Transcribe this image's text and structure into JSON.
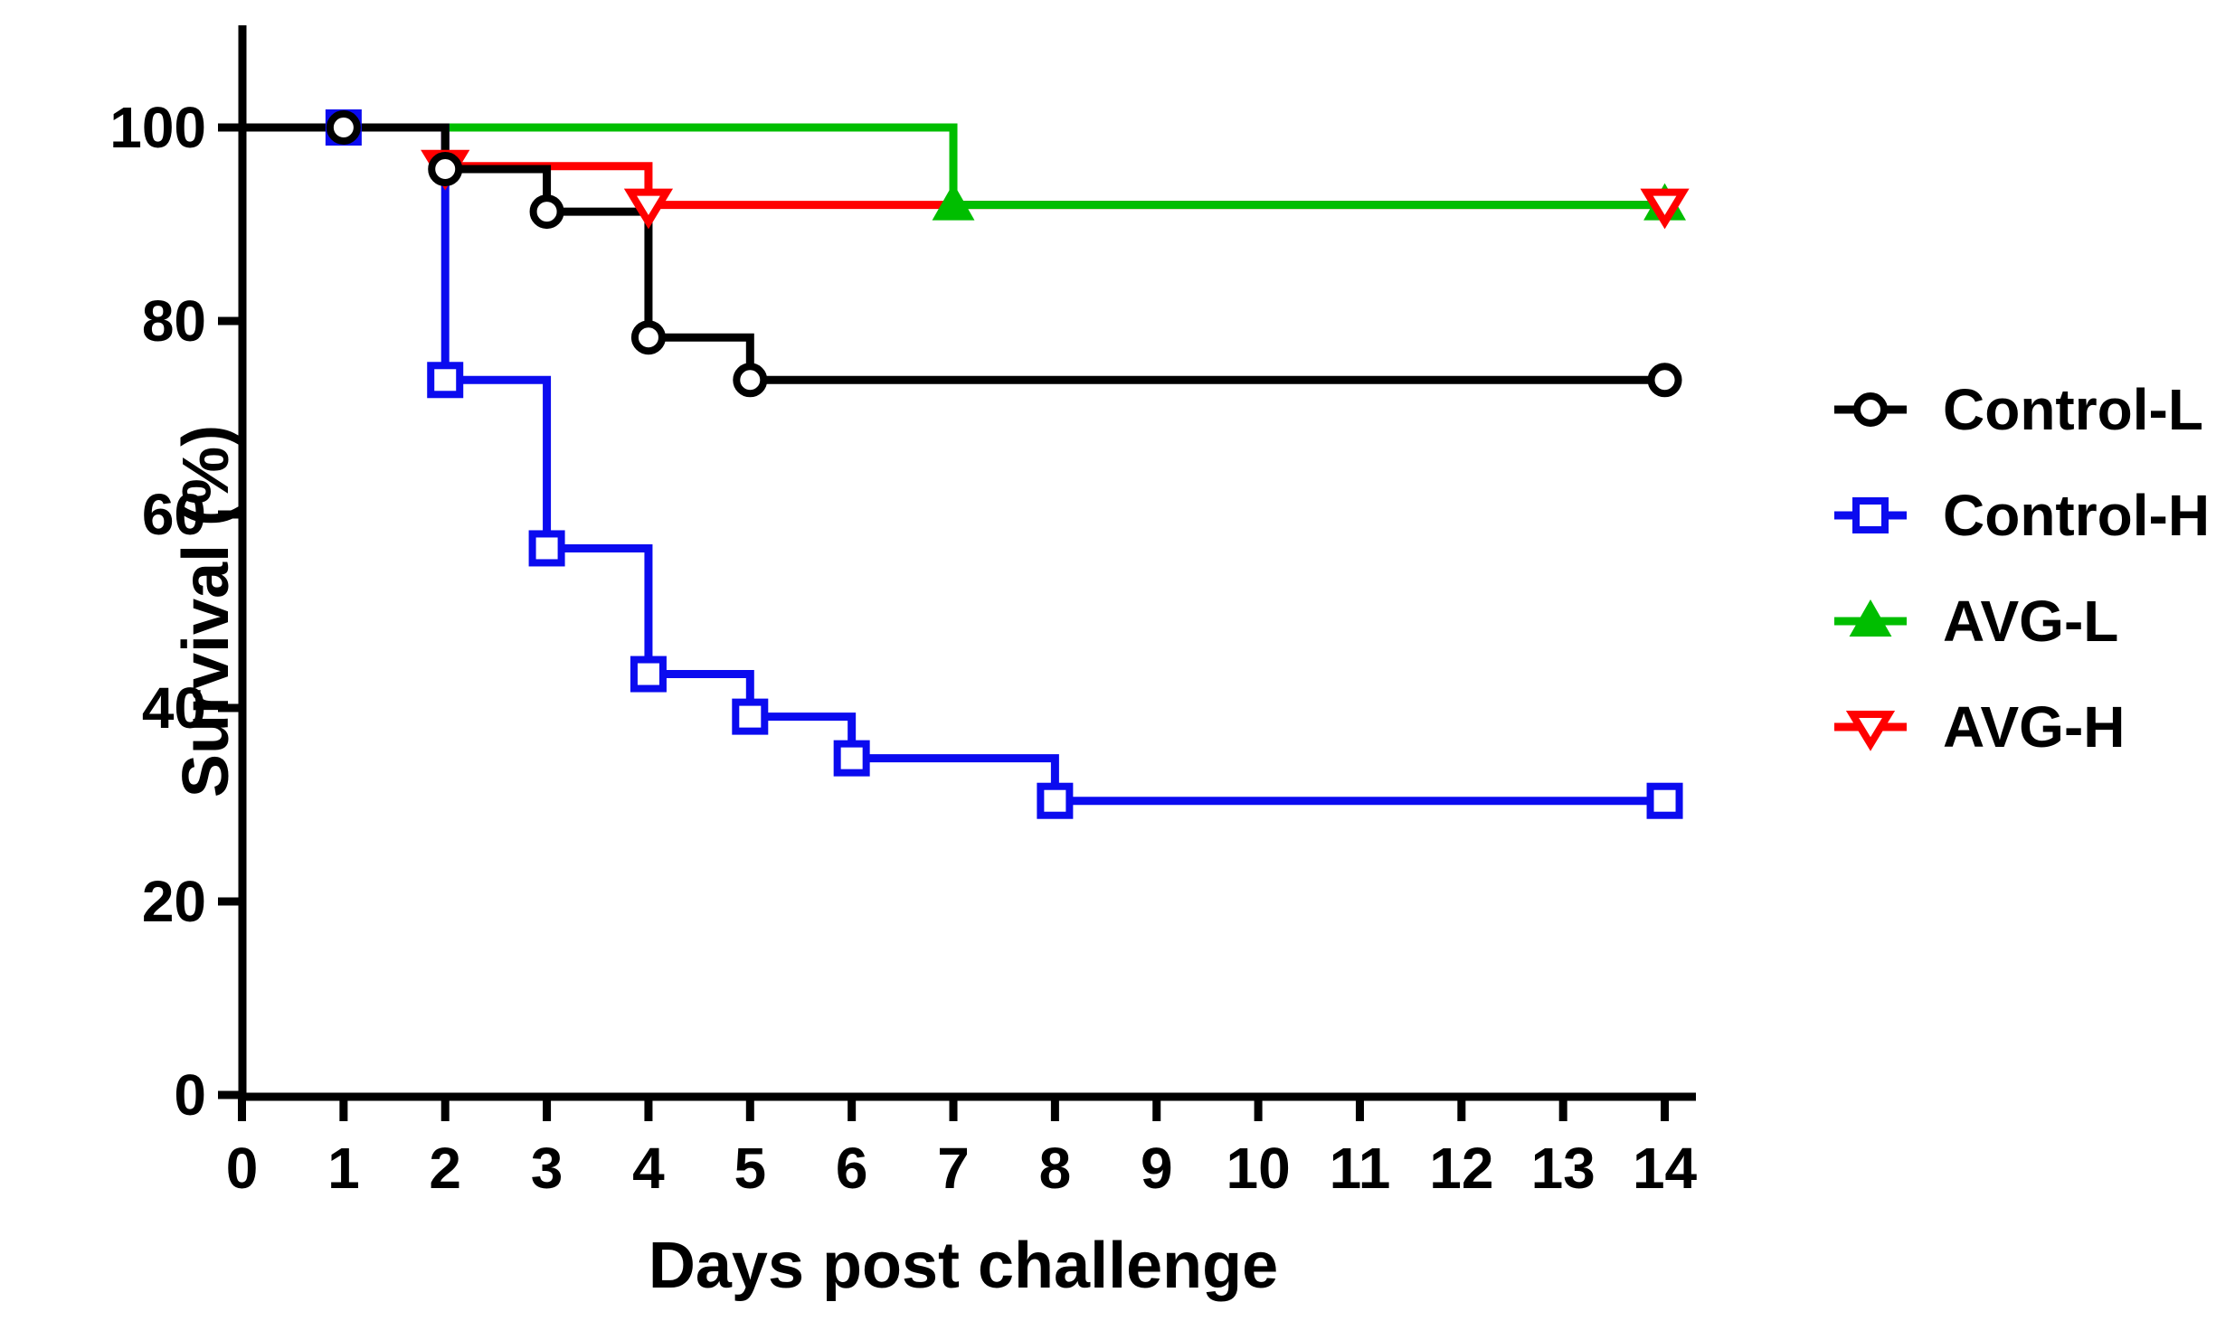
{
  "figure": {
    "background": "#ffffff"
  },
  "chart_data": {
    "type": "line",
    "subtype": "kaplan-meier-survival-steps",
    "title": "",
    "xlabel": "Days post challenge",
    "ylabel": "Survival (%)",
    "xlim": [
      0,
      14.3
    ],
    "ylim": [
      0,
      110
    ],
    "xticks": [
      0,
      1,
      2,
      3,
      4,
      5,
      6,
      7,
      8,
      9,
      10,
      11,
      12,
      13,
      14
    ],
    "yticks": [
      0,
      20,
      40,
      60,
      80,
      100
    ],
    "grid": false,
    "legend_position": "right",
    "axis_color": "#000000",
    "series": [
      {
        "name": "Control-L",
        "color": "#000000",
        "marker": "open-circle",
        "steps": [
          [
            0,
            100
          ],
          [
            2,
            95.7
          ],
          [
            3,
            91.3
          ],
          [
            4,
            78.3
          ],
          [
            5,
            73.9
          ],
          [
            14,
            73.9
          ]
        ],
        "marker_points": [
          [
            1,
            100
          ],
          [
            2,
            95.7
          ],
          [
            3,
            91.3
          ],
          [
            4,
            78.3
          ],
          [
            5,
            73.9
          ],
          [
            14,
            73.9
          ]
        ]
      },
      {
        "name": "Control-H",
        "color": "#0b0bef",
        "marker": "open-square",
        "steps": [
          [
            0,
            100
          ],
          [
            2,
            73.9
          ],
          [
            3,
            56.5
          ],
          [
            4,
            43.5
          ],
          [
            5,
            39.1
          ],
          [
            6,
            34.8
          ],
          [
            8,
            30.4
          ],
          [
            14,
            30.4
          ]
        ],
        "marker_points": [
          [
            1,
            100
          ],
          [
            2,
            73.9
          ],
          [
            3,
            56.5
          ],
          [
            4,
            43.5
          ],
          [
            5,
            39.1
          ],
          [
            6,
            34.8
          ],
          [
            8,
            30.4
          ],
          [
            14,
            30.4
          ]
        ]
      },
      {
        "name": "AVG-L",
        "color": "#00be00",
        "marker": "filled-triangle-up",
        "steps": [
          [
            0,
            100
          ],
          [
            7,
            92
          ],
          [
            14,
            92
          ]
        ],
        "marker_points": [
          [
            7,
            92
          ],
          [
            14,
            92
          ]
        ]
      },
      {
        "name": "AVG-H",
        "color": "#ff0000",
        "marker": "open-triangle-down",
        "steps": [
          [
            0,
            100
          ],
          [
            2,
            96
          ],
          [
            4,
            92
          ],
          [
            14,
            92
          ]
        ],
        "marker_points": [
          [
            2,
            96
          ],
          [
            4,
            92
          ],
          [
            14,
            92
          ]
        ]
      }
    ]
  }
}
